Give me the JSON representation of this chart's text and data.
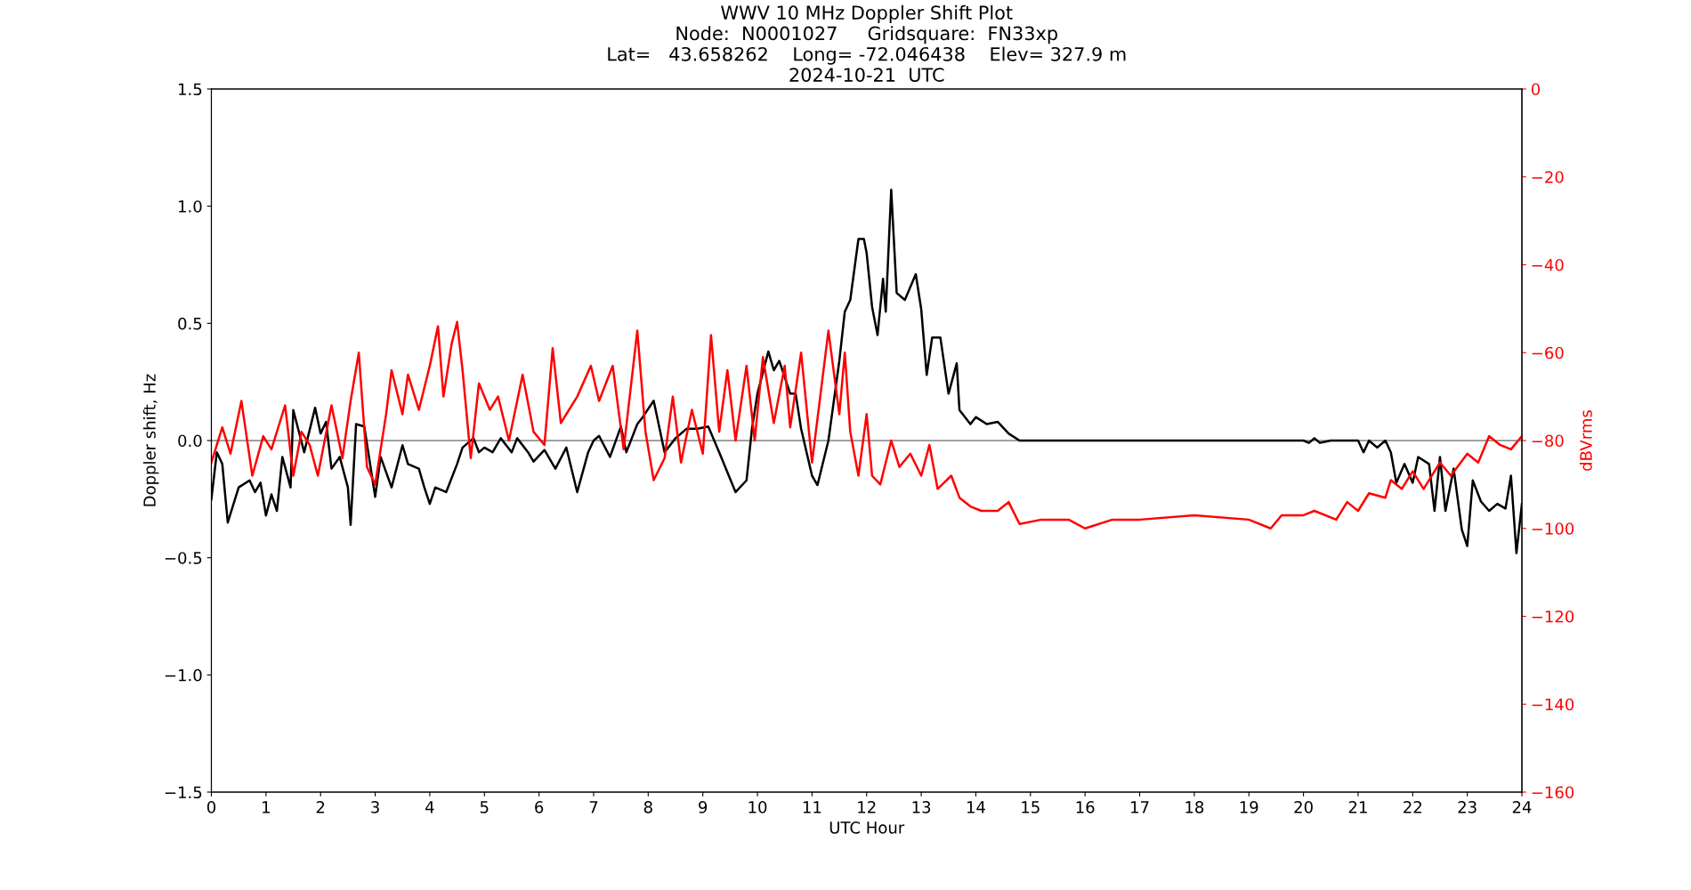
{
  "chart_data": {
    "type": "line",
    "title": "WWV 10 MHz Doppler Shift Plot\nNode:  N0001027     Gridsquare:  FN33xp\nLat=   43.658262    Long= -72.046438    Elev= 327.9 m\n2024-10-21  UTC",
    "xlabel": "UTC Hour",
    "ylabel": "Doppler shift, Hz",
    "y2label": "dBVrms",
    "xlim": [
      0,
      24
    ],
    "xticks": [
      0,
      1,
      2,
      3,
      4,
      5,
      6,
      7,
      8,
      9,
      10,
      11,
      12,
      13,
      14,
      15,
      16,
      17,
      18,
      19,
      20,
      21,
      22,
      23,
      24
    ],
    "ylim": [
      -1.5,
      1.5
    ],
    "yticks": [
      {
        "value": -1.5,
        "label": "−1.5"
      },
      {
        "value": -1.0,
        "label": "−1.0"
      },
      {
        "value": -0.5,
        "label": "−0.5"
      },
      {
        "value": 0.0,
        "label": "0.0"
      },
      {
        "value": 0.5,
        "label": "0.5"
      },
      {
        "value": 1.0,
        "label": "1.0"
      },
      {
        "value": 1.5,
        "label": "1.5"
      }
    ],
    "y2lim": [
      -160,
      0
    ],
    "y2ticks": [
      {
        "value": -160,
        "label": "−160"
      },
      {
        "value": -140,
        "label": "−140"
      },
      {
        "value": -120,
        "label": "−120"
      },
      {
        "value": -100,
        "label": "−100"
      },
      {
        "value": -80,
        "label": "−80"
      },
      {
        "value": -60,
        "label": "−60"
      },
      {
        "value": -40,
        "label": "−40"
      },
      {
        "value": -20,
        "label": "−20"
      },
      0
    ],
    "grid": false,
    "legend": false,
    "line_style": "solid",
    "marker": "none",
    "ref_lines": [
      {
        "axis": "y",
        "value": 0,
        "color": "#808080",
        "line_style": "solid"
      }
    ],
    "series": [
      {
        "color": "#ff0000",
        "axis": "y2",
        "x": [
          0,
          0.2,
          0.35,
          0.55,
          0.75,
          0.95,
          1.1,
          1.35,
          1.5,
          1.65,
          1.8,
          1.95,
          2.2,
          2.4,
          2.55,
          2.7,
          2.85,
          3.0,
          3.2,
          3.3,
          3.5,
          3.6,
          3.8,
          4.0,
          4.15,
          4.25,
          4.4,
          4.5,
          4.6,
          4.75,
          4.9,
          5.1,
          5.25,
          5.45,
          5.7,
          5.9,
          6.1,
          6.25,
          6.4,
          6.7,
          6.95,
          7.1,
          7.35,
          7.55,
          7.8,
          7.95,
          8.1,
          8.3,
          8.45,
          8.6,
          8.8,
          9.0,
          9.15,
          9.3,
          9.45,
          9.6,
          9.8,
          9.95,
          10.1,
          10.3,
          10.5,
          10.6,
          10.8,
          11.0,
          11.3,
          11.5,
          11.6,
          11.7,
          11.85,
          12.0,
          12.1,
          12.25,
          12.45,
          12.6,
          12.8,
          13.0,
          13.15,
          13.3,
          13.55,
          13.7,
          13.9,
          14.1,
          14.4,
          14.6,
          14.8,
          15.2,
          15.7,
          16.0,
          16.5,
          17,
          18,
          19,
          19.4,
          19.6,
          20,
          20.2,
          20.6,
          20.8,
          21.0,
          21.2,
          21.5,
          21.6,
          21.8,
          22.0,
          22.2,
          22.5,
          22.7,
          23.0,
          23.2,
          23.4,
          23.6,
          23.8,
          24
        ],
        "values": [
          -85,
          -77,
          -83,
          -71,
          -88,
          -79,
          -82,
          -72,
          -88,
          -78,
          -81,
          -88,
          -72,
          -84,
          -71,
          -60,
          -86,
          -90,
          -74,
          -64,
          -74,
          -65,
          -73,
          -63,
          -54,
          -70,
          -58,
          -53,
          -64,
          -84,
          -67,
          -73,
          -70,
          -80,
          -65,
          -78,
          -81,
          -59,
          -76,
          -70,
          -63,
          -71,
          -63,
          -82,
          -55,
          -78,
          -89,
          -84,
          -70,
          -85,
          -73,
          -83,
          -56,
          -78,
          -64,
          -80,
          -63,
          -80,
          -61,
          -76,
          -63,
          -77,
          -60,
          -85,
          -55,
          -74,
          -60,
          -78,
          -88,
          -74,
          -88,
          -90,
          -80,
          -86,
          -83,
          -88,
          -81,
          -91,
          -88,
          -93,
          -95,
          -96,
          -96,
          -94,
          -99,
          -98,
          -98,
          -100,
          -98,
          -98,
          -97,
          -98,
          -100,
          -97,
          -97,
          -96,
          -98,
          -94,
          -96,
          -92,
          -93,
          -89,
          -91,
          -87,
          -91,
          -85,
          -88,
          -83,
          -85,
          -79,
          -81,
          -82,
          -79
        ]
      },
      {
        "color": "#000000",
        "x": [
          0,
          0.1,
          0.2,
          0.3,
          0.5,
          0.7,
          0.8,
          0.9,
          1.0,
          1.1,
          1.2,
          1.3,
          1.45,
          1.5,
          1.7,
          1.9,
          2.0,
          2.1,
          2.2,
          2.35,
          2.5,
          2.55,
          2.65,
          2.8,
          3.0,
          3.1,
          3.3,
          3.5,
          3.6,
          3.8,
          3.9,
          4.0,
          4.1,
          4.3,
          4.5,
          4.6,
          4.8,
          4.9,
          5.0,
          5.15,
          5.3,
          5.5,
          5.6,
          5.8,
          5.9,
          6.1,
          6.3,
          6.5,
          6.7,
          6.9,
          7.0,
          7.1,
          7.3,
          7.5,
          7.6,
          7.8,
          7.9,
          8.1,
          8.3,
          8.5,
          8.7,
          8.9,
          9.1,
          9.3,
          9.6,
          9.8,
          9.9,
          10.0,
          10.2,
          10.3,
          10.4,
          10.6,
          10.7,
          10.8,
          11.0,
          11.1,
          11.3,
          11.5,
          11.6,
          11.7,
          11.85,
          11.95,
          12.0,
          12.1,
          12.2,
          12.3,
          12.35,
          12.45,
          12.55,
          12.7,
          12.9,
          13.0,
          13.1,
          13.2,
          13.35,
          13.5,
          13.65,
          13.7,
          13.9,
          14.0,
          14.2,
          14.4,
          14.6,
          14.8,
          15,
          16,
          17,
          18,
          19,
          20,
          20.1,
          20.2,
          20.3,
          20.5,
          21.0,
          21.1,
          21.2,
          21.35,
          21.5,
          21.6,
          21.7,
          21.85,
          22.0,
          22.1,
          22.3,
          22.4,
          22.5,
          22.6,
          22.75,
          22.9,
          23.0,
          23.1,
          23.25,
          23.4,
          23.55,
          23.7,
          23.8,
          23.9,
          24.0
        ],
        "values": [
          -0.25,
          -0.05,
          -0.1,
          -0.35,
          -0.2,
          -0.17,
          -0.22,
          -0.18,
          -0.32,
          -0.23,
          -0.3,
          -0.07,
          -0.2,
          0.13,
          -0.05,
          0.14,
          0.03,
          0.08,
          -0.12,
          -0.07,
          -0.2,
          -0.36,
          0.07,
          0.06,
          -0.24,
          -0.07,
          -0.2,
          -0.02,
          -0.1,
          -0.12,
          -0.2,
          -0.27,
          -0.2,
          -0.22,
          -0.1,
          -0.03,
          0.01,
          -0.05,
          -0.03,
          -0.05,
          0.01,
          -0.05,
          0.01,
          -0.05,
          -0.09,
          -0.04,
          -0.12,
          -0.03,
          -0.22,
          -0.05,
          0.0,
          0.02,
          -0.07,
          0.06,
          -0.05,
          0.07,
          0.1,
          0.17,
          -0.05,
          0.01,
          0.05,
          0.05,
          0.06,
          -0.05,
          -0.22,
          -0.17,
          0.05,
          0.2,
          0.38,
          0.3,
          0.34,
          0.2,
          0.2,
          0.05,
          -0.15,
          -0.19,
          0.0,
          0.34,
          0.55,
          0.6,
          0.86,
          0.86,
          0.8,
          0.57,
          0.45,
          0.69,
          0.55,
          1.07,
          0.63,
          0.6,
          0.71,
          0.56,
          0.28,
          0.44,
          0.44,
          0.2,
          0.33,
          0.13,
          0.07,
          0.1,
          0.07,
          0.08,
          0.03,
          0.0,
          0.0,
          0.0,
          0.0,
          0.0,
          0.0,
          0.0,
          -0.01,
          0.01,
          -0.01,
          0.0,
          0.0,
          -0.05,
          0.0,
          -0.03,
          0.0,
          -0.05,
          -0.18,
          -0.1,
          -0.18,
          -0.07,
          -0.1,
          -0.3,
          -0.07,
          -0.3,
          -0.12,
          -0.38,
          -0.45,
          -0.17,
          -0.26,
          -0.3,
          -0.27,
          -0.29,
          -0.15,
          -0.48,
          -0.27
        ]
      }
    ]
  }
}
